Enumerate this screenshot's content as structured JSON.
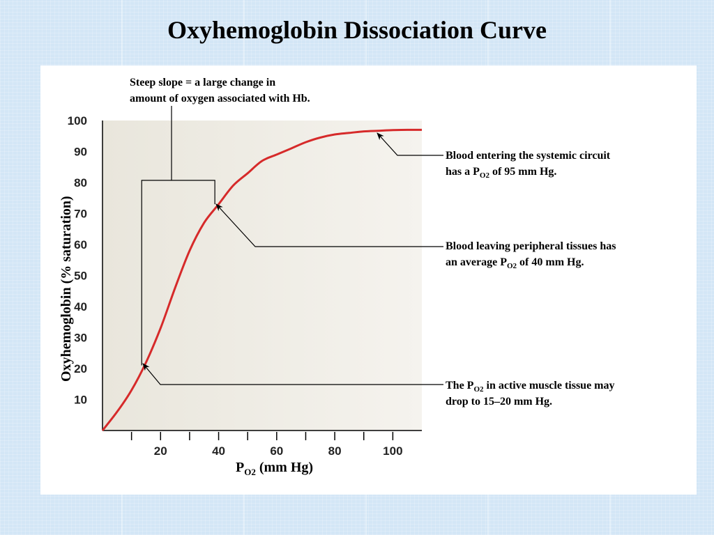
{
  "slide": {
    "title": "Oxyhemoglobin Dissociation Curve"
  },
  "chart_data": {
    "type": "line",
    "title": "",
    "xlabel": {
      "main": "P",
      "sub": "O2",
      "rest": " (mm Hg)"
    },
    "ylabel": "Oxyhemoglobin (% saturation)",
    "xlim": [
      0,
      110
    ],
    "ylim": [
      0,
      100
    ],
    "x_ticks": [
      20,
      40,
      60,
      80,
      100
    ],
    "x_minor_ticks": [
      10,
      30,
      50,
      70,
      90
    ],
    "y_ticks": [
      10,
      20,
      30,
      40,
      50,
      60,
      70,
      80,
      90,
      100
    ],
    "grid": false,
    "series": [
      {
        "color": "#d62a2a",
        "x": [
          0,
          5,
          10,
          15,
          20,
          25,
          30,
          35,
          40,
          45,
          50,
          55,
          60,
          65,
          70,
          75,
          80,
          85,
          90,
          95,
          100,
          105,
          110
        ],
        "y": [
          0,
          6,
          13,
          22,
          33,
          46,
          58,
          67,
          73,
          79,
          83,
          87,
          89,
          91,
          93,
          94.5,
          95.5,
          96,
          96.5,
          96.7,
          96.9,
          97,
          97
        ]
      }
    ],
    "annotations": [
      {
        "id": "steep",
        "lines": [
          "Steep slope = a large change in",
          "amount of oxygen associated with Hb."
        ]
      },
      {
        "id": "systemic",
        "line1": "Blood entering the systemic circuit",
        "line2_pre": "has a P",
        "sub": "O2",
        "line2_post": " of 95 mm Hg."
      },
      {
        "id": "peripheral",
        "line1": "Blood leaving peripheral tissues has",
        "line2_pre": "an average P",
        "sub": "O2",
        "line2_post": " of 40 mm Hg."
      },
      {
        "id": "muscle",
        "line1_pre": "The P",
        "sub": "O2",
        "line1_post": " in active muscle tissue may",
        "line2": "drop to 15–20 mm Hg."
      }
    ],
    "colors": {
      "plot_bg": "#f1efe8",
      "curve": "#d62a2a"
    }
  }
}
